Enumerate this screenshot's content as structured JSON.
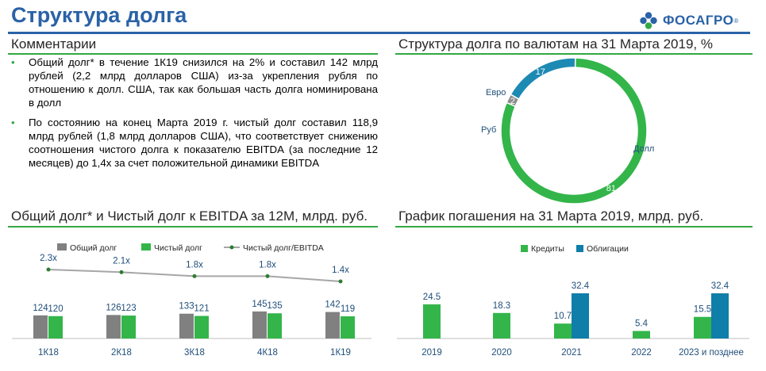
{
  "header": {
    "title": "Структура долга",
    "logo_text": "ФОСАГРО"
  },
  "comments": {
    "title": "Комментарии",
    "items": [
      "Общий долг* в течение 1К19 снизился на 2% и составил 142 млрд рублей (2,2 млрд долларов США) из-за укрепления рубля по отношению к долл. США, так как большая часть долга номинирована в долл",
      "По состоянию на конец Марта 2019 г. чистый долг составил 118,9 млрд рублей (1,8 млрд долларов США), что соответствует снижению соотношения чистого долга к показателю EBITDA (за последние 12 месяцев) до 1,4х за счет положительной динамики EBITDA"
    ]
  },
  "colors": {
    "brand_blue": "#2a62a6",
    "green": "#33b54a",
    "teal": "#1d8ab3",
    "grey": "#808080",
    "line_grey": "#a6a6a6"
  },
  "chart_data": [
    {
      "type": "pie",
      "title": "Структура долга по валютам на 31 Марта 2019, %",
      "labels": [
        "Долл",
        "Евро",
        "Руб"
      ],
      "values": [
        81,
        17,
        2
      ],
      "value_labels": [
        "81",
        "17",
        "2"
      ],
      "colors": [
        "#33b54a",
        "#1d8ab3",
        "#8c8c8c"
      ]
    },
    {
      "type": "bar",
      "title": "Общий долг* и Чистый долг к EBITDA за 12М, млрд. руб.",
      "categories": [
        "1К18",
        "2К18",
        "3К18",
        "4К18",
        "1К19"
      ],
      "series": [
        {
          "name": "Общий долг",
          "values": [
            124,
            126,
            133,
            145,
            142
          ],
          "color": "#808080"
        },
        {
          "name": "Чистый долг",
          "values": [
            120,
            123,
            121,
            135,
            119
          ],
          "color": "#33b54a"
        },
        {
          "name": "Чистый долг/EBITDA",
          "type": "line",
          "values": [
            2.3,
            2.1,
            1.8,
            1.8,
            1.4
          ],
          "labels": [
            "2.3x",
            "2.1x",
            "1.8x",
            "1.8x",
            "1.4x"
          ],
          "color": "#a6a6a6"
        }
      ]
    },
    {
      "type": "bar",
      "title": "График погашения на 31 Марта 2019, млрд. руб.",
      "categories": [
        "2019",
        "2020",
        "2021",
        "2022",
        "2023 и позднее"
      ],
      "series": [
        {
          "name": "Кредиты",
          "values": [
            24.5,
            18.3,
            10.7,
            5.4,
            15.5
          ],
          "labels": [
            "24.5",
            "18.3",
            "10.7",
            "5.4",
            "15.5"
          ],
          "color": "#33b54a"
        },
        {
          "name": "Облигации",
          "values": [
            0,
            0,
            32.4,
            0,
            32.4
          ],
          "labels": [
            "",
            "",
            "32.4",
            "",
            "32.4"
          ],
          "color": "#0f7ea8"
        }
      ]
    }
  ]
}
